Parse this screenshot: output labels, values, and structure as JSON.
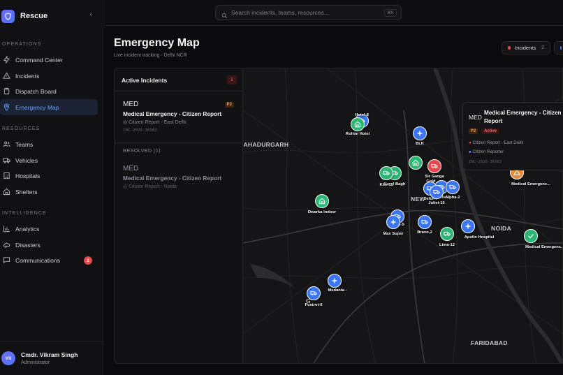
{
  "app": {
    "name": "Rescue"
  },
  "sidebar": {
    "sections": [
      {
        "title": "OPERATIONS",
        "items": [
          {
            "label": "Command Center",
            "icon": "bolt-icon"
          },
          {
            "label": "Incidents",
            "icon": "alert-triangle-icon"
          },
          {
            "label": "Dispatch Board",
            "icon": "clipboard-icon"
          },
          {
            "label": "Emergency Map",
            "icon": "map-pin-icon",
            "active": true
          }
        ]
      },
      {
        "title": "RESOURCES",
        "items": [
          {
            "label": "Teams",
            "icon": "users-icon"
          },
          {
            "label": "Vehicles",
            "icon": "truck-icon"
          },
          {
            "label": "Hospitals",
            "icon": "building-icon"
          },
          {
            "label": "Shelters",
            "icon": "home-icon"
          }
        ]
      },
      {
        "title": "INTELLIGENCE",
        "items": [
          {
            "label": "Analytics",
            "icon": "bar-chart-icon"
          },
          {
            "label": "Disasters",
            "icon": "cloud-icon"
          },
          {
            "label": "Communications",
            "icon": "message-icon",
            "badge": "2"
          }
        ]
      }
    ],
    "user": {
      "initials": "VS",
      "name": "Cmdr. Vikram Singh",
      "role": "Administrator"
    }
  },
  "search": {
    "placeholder": "Search incidents, teams, resources...",
    "shortcut": "⌘K"
  },
  "page": {
    "title": "Emergency Map",
    "subtitle": "Live incident tracking - Delhi NCR"
  },
  "filters": {
    "incidents_label": "Incidents",
    "incidents_count": "2",
    "incidents_color": "#e5484d",
    "second_color": "#3b76f6"
  },
  "panel": {
    "title": "Active Incidents",
    "count": "1",
    "active": [
      {
        "code": "MED",
        "priority": "P2",
        "title": "Medical Emergency - Citizen Report",
        "location": "Citizen Report - East Delhi",
        "id": "INC-2026-36583"
      }
    ],
    "resolved_title": "RESOLVED (1)",
    "resolved": [
      {
        "code": "MED",
        "title": "Medical Emergency - Citizen Report",
        "location": "Citizen Report - Noida"
      }
    ]
  },
  "map": {
    "cities": [
      "BAHADURGARH",
      "NEW",
      "NOIDA",
      "G",
      "FARIDABAD"
    ],
    "markers": [
      {
        "label": "Hotel-8",
        "color": "blue",
        "icon": "truck"
      },
      {
        "label": "Rohini Hotel",
        "color": "green",
        "icon": "home"
      },
      {
        "label": "BLK",
        "color": "blue",
        "icon": "plus"
      },
      {
        "label": "Gold",
        "color": "green",
        "icon": "home"
      },
      {
        "label": "Karol Bagh",
        "color": "green",
        "icon": "truck"
      },
      {
        "label": "Sir Ganga",
        "color": "red",
        "icon": "truck"
      },
      {
        "label": "Kilo-11",
        "color": "green",
        "icon": "truck"
      },
      {
        "label": "Charlie-3",
        "color": "blue",
        "icon": "truck"
      },
      {
        "label": "Alpha-2",
        "color": "blue",
        "icon": "truck"
      },
      {
        "label": "Delta-4",
        "color": "blue",
        "icon": "truck"
      },
      {
        "label": "Juliet-10",
        "color": "blue",
        "icon": "truck"
      },
      {
        "label": "Dwarka Indoor",
        "color": "green",
        "icon": "home"
      },
      {
        "label": "Echo-5",
        "color": "blue",
        "icon": "truck"
      },
      {
        "label": "Max Super",
        "color": "blue",
        "icon": "plus"
      },
      {
        "label": "Bravo-2",
        "color": "blue",
        "icon": "truck"
      },
      {
        "label": "Lima-12",
        "color": "green",
        "icon": "truck"
      },
      {
        "label": "Apollo Hospital",
        "color": "blue",
        "icon": "plus"
      },
      {
        "label": "Medical Emergenc...",
        "color": "orange",
        "icon": "alert"
      },
      {
        "label": "Medical Emergenc...",
        "color": "green",
        "icon": "check"
      },
      {
        "label": "Foxtrot-6",
        "color": "blue",
        "icon": "truck"
      },
      {
        "label": "Medanta -",
        "color": "blue",
        "icon": "plus"
      }
    ]
  },
  "popup": {
    "code": "MED",
    "title": "Medical Emergency - Citizen Report",
    "priority": "P2",
    "status": "Active",
    "location": "Citizen Report - East Delhi",
    "reporter": "Citizen Reporter",
    "id": "INC-2026-36583"
  }
}
